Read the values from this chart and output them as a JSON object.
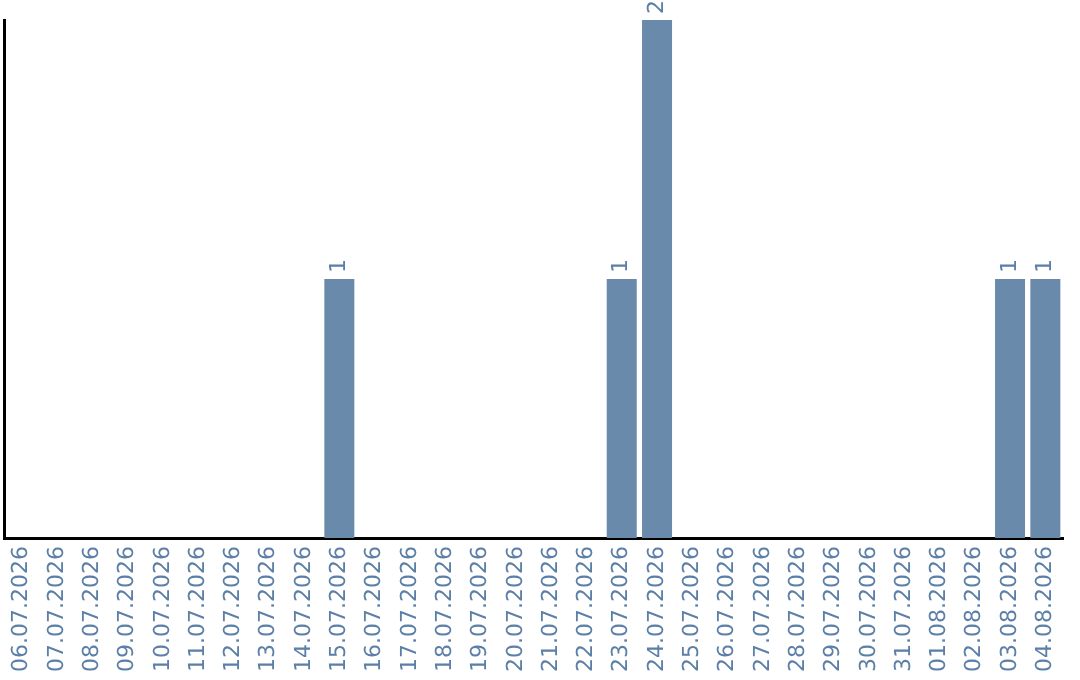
{
  "chart_data": {
    "type": "bar",
    "categories": [
      "06.07.2026",
      "07.07.2026",
      "08.07.2026",
      "09.07.2026",
      "10.07.2026",
      "11.07.2026",
      "12.07.2026",
      "13.07.2026",
      "14.07.2026",
      "15.07.2026",
      "16.07.2026",
      "17.07.2026",
      "18.07.2026",
      "19.07.2026",
      "20.07.2026",
      "21.07.2026",
      "22.07.2026",
      "23.07.2026",
      "24.07.2026",
      "25.07.2026",
      "26.07.2026",
      "27.07.2026",
      "28.07.2026",
      "29.07.2026",
      "30.07.2026",
      "31.07.2026",
      "01.08.2026",
      "02.08.2026",
      "03.08.2026",
      "04.08.2026"
    ],
    "values": [
      0,
      0,
      0,
      0,
      0,
      0,
      0,
      0,
      0,
      1,
      0,
      0,
      0,
      0,
      0,
      0,
      0,
      1,
      2,
      0,
      0,
      0,
      0,
      0,
      0,
      0,
      0,
      0,
      1,
      1
    ],
    "value_labels": [
      null,
      null,
      null,
      null,
      null,
      null,
      null,
      null,
      null,
      "1",
      null,
      null,
      null,
      null,
      null,
      null,
      null,
      "1",
      "2",
      null,
      null,
      null,
      null,
      null,
      null,
      null,
      null,
      null,
      "1",
      "1"
    ],
    "color": "#6a8aab",
    "tick_labels": "x",
    "grid": false,
    "legend": false
  }
}
